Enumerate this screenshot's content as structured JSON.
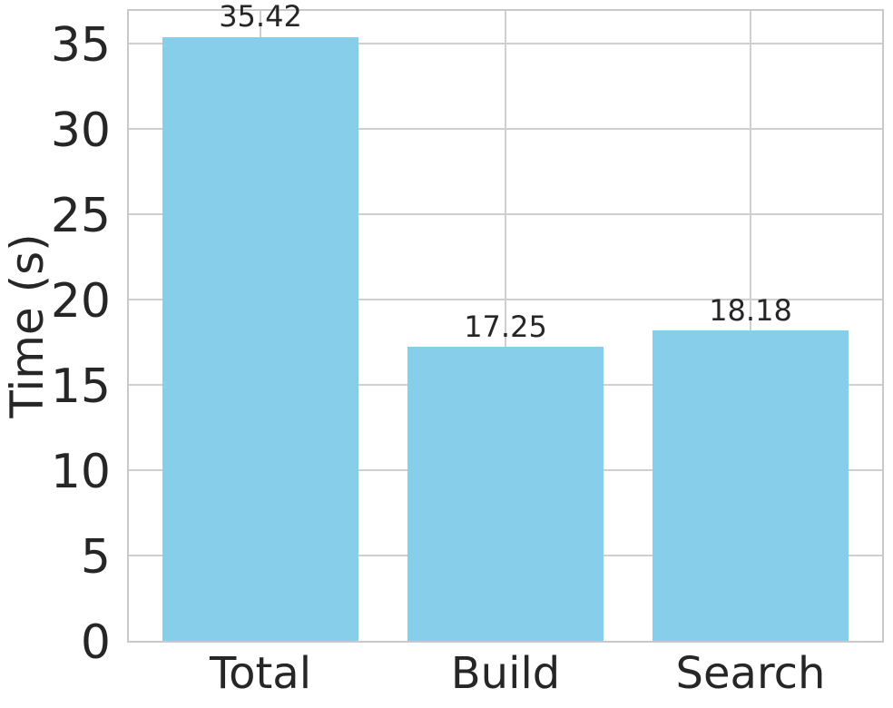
{
  "chart_data": {
    "type": "bar",
    "title": "",
    "xlabel": "",
    "ylabel": "Time (s)",
    "categories": [
      "Total",
      "Build",
      "Search"
    ],
    "values": [
      35.42,
      17.25,
      18.18
    ],
    "bar_value_labels": [
      "35.42",
      "17.25",
      "18.18"
    ],
    "yticks": [
      0,
      5,
      10,
      15,
      20,
      25,
      30,
      35
    ],
    "ylim": [
      0,
      37.15
    ],
    "grid": true,
    "legend_position": "none",
    "colors": {
      "bar": "#87CEEB",
      "text": "#262626",
      "grid": "#cfcfcf",
      "spine": "#c9c9c9",
      "background": "#ffffff"
    }
  }
}
